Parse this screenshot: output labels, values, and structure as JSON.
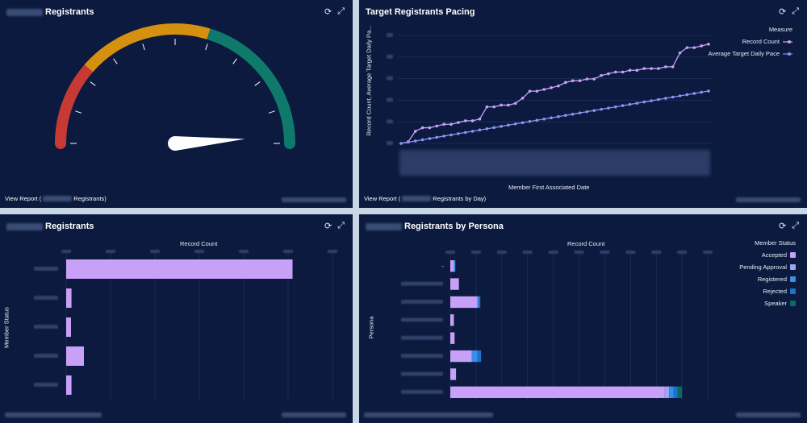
{
  "colors": {
    "panel_bg": "#0b1a3e",
    "gauge_red": "#c73a33",
    "gauge_orange": "#d4900e",
    "gauge_teal": "#0f7a6c",
    "record_count": "#c9a0f7",
    "target_pace": "#8a93f0",
    "accepted": "#c9a0f7",
    "pending": "#9aa6f3",
    "registered": "#3b8ee8",
    "rejected": "#1a74c9",
    "speaker": "#0c6b60"
  },
  "toolbar": {
    "refresh_icon": "refresh-icon",
    "expand_icon": "expand-icon"
  },
  "gauge": {
    "title": "Registrants",
    "footer_prefix": "View Report (",
    "footer_suffix": "Registrants)",
    "needle_fraction": 0.98
  },
  "pacing": {
    "title": "Target Registrants Pacing",
    "footer_prefix": "View Report (",
    "footer_suffix": "Registrants by Day)",
    "legend_title": "Measure",
    "legend": [
      "Record Count",
      "Average Target Daily Pace"
    ],
    "xlabel": "Member First Associated Date",
    "ylabel": "Record Count, Average Target Daily Pa..."
  },
  "status_chart": {
    "title": "Registrants",
    "xlabel": "Record Count",
    "ylabel": "Member Status"
  },
  "persona_chart": {
    "title": "Registrants by Persona",
    "xlabel": "Record Count",
    "ylabel": "Persona",
    "legend_title": "Member Status",
    "legend": [
      "Accepted",
      "Pending Approval",
      "Registered",
      "Rejected",
      "Speaker"
    ],
    "first_category": "-"
  },
  "chart_data": [
    {
      "type": "line",
      "series": [
        {
          "name": "Record Count",
          "values": [
            0,
            1,
            7,
            9,
            9,
            10,
            11,
            11,
            12,
            13,
            13,
            14,
            21,
            21,
            22,
            22,
            23,
            26,
            30,
            30,
            31,
            32,
            33,
            35,
            36,
            36,
            37,
            37,
            39,
            40,
            41,
            41,
            42,
            42,
            43,
            43,
            43,
            44,
            44,
            52,
            55,
            55,
            56,
            57
          ]
        },
        {
          "name": "Average Target Daily Pace",
          "values": [
            0,
            0.7,
            1.4,
            2.1,
            2.8,
            3.5,
            4.2,
            4.9,
            5.6,
            6.3,
            7,
            7.7,
            8.4,
            9.1,
            9.8,
            10.5,
            11.2,
            11.9,
            12.6,
            13.3,
            14,
            14.7,
            15.4,
            16.1,
            16.8,
            17.5,
            18.2,
            18.9,
            19.6,
            20.3,
            21,
            21.7,
            22.4,
            23.1,
            23.8,
            24.5,
            25.2,
            25.9,
            26.6,
            27.3,
            28,
            28.7,
            29.4,
            30.1
          ]
        }
      ]
    },
    {
      "type": "bar",
      "values": [
        51,
        1.2,
        0.8,
        4,
        1.2
      ]
    },
    {
      "type": "bar",
      "series": [
        {
          "name": "Accepted",
          "values": [
            0.5,
            1.2,
            3.8,
            0.5,
            0.6,
            3.0,
            0.8,
            30.0
          ]
        },
        {
          "name": "Pending Approval",
          "values": [
            0,
            0,
            0,
            0,
            0,
            0,
            0,
            0.6
          ]
        },
        {
          "name": "Registered",
          "values": [
            0.2,
            0,
            0.2,
            0,
            0,
            0.8,
            0,
            0.6
          ]
        },
        {
          "name": "Rejected",
          "values": [
            0,
            0,
            0.2,
            0,
            0,
            0.5,
            0,
            0.6
          ]
        },
        {
          "name": "Speaker",
          "values": [
            0,
            0,
            0,
            0,
            0,
            0,
            0,
            0.6
          ]
        }
      ]
    }
  ]
}
